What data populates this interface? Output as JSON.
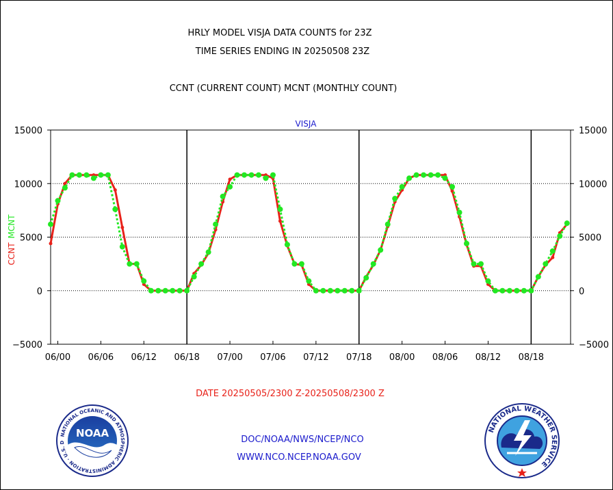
{
  "header": {
    "title_line1": "HRLY MODEL VISJA DATA COUNTS for 23Z",
    "title_line2": "TIME SERIES ENDING IN 20250508 23Z",
    "subtitle": "CCNT (CURRENT COUNT) MCNT (MONTHLY COUNT)"
  },
  "footer": {
    "date_range": "DATE 20250505/2300 Z-20250508/2300 Z",
    "org_line": "DOC/NOAA/NWS/NCEP/NCO",
    "url_line": "WWW.NCO.NCEP.NOAA.GOV"
  },
  "logos": {
    "noaa_text": "NOAA",
    "noaa_ring_text": "NATIONAL OCEANIC AND ATMOSPHERIC ADMINISTRATION · U.S. DEPARTMENT OF COMMERCE ·",
    "nws_ring_text": "NATIONAL WEATHER SERVICE"
  },
  "colors": {
    "ccnt": "#e8221a",
    "mcnt": "#22e822",
    "station_label": "#1a1acc",
    "footer_text": "#1a1acc",
    "date_text": "#e8221a"
  },
  "chart_data": {
    "type": "line",
    "title": "VISJA",
    "ylabel_ccnt": "CCNT",
    "ylabel_mcnt": "MCNT",
    "ylim": [
      -5000,
      15000
    ],
    "yticks": [
      15000,
      10000,
      5000,
      0,
      -5000
    ],
    "ytick_labels": [
      "15000",
      "10000",
      "5000",
      "0",
      "−5000"
    ],
    "xlim": [
      -1,
      71.5
    ],
    "xticks": [
      0,
      6,
      12,
      18,
      24,
      30,
      36,
      42,
      48,
      54,
      60,
      66
    ],
    "xtick_labels": [
      "06/00",
      "06/06",
      "06/12",
      "06/18",
      "07/00",
      "07/06",
      "07/12",
      "07/18",
      "08/00",
      "08/06",
      "08/12",
      "08/18"
    ],
    "day_boundaries": [
      18,
      42,
      66
    ],
    "grid": "horizontal dotted",
    "series": [
      {
        "name": "CCNT",
        "style": "line",
        "x": [
          -1,
          0,
          1,
          2,
          3,
          4,
          5,
          6,
          7,
          8,
          9,
          10,
          11,
          12,
          13,
          14,
          15,
          16,
          17,
          18,
          19,
          20,
          21,
          22,
          23,
          24,
          25,
          26,
          27,
          28,
          29,
          30,
          31,
          32,
          33,
          34,
          35,
          36,
          37,
          38,
          39,
          40,
          41,
          42,
          43,
          44,
          45,
          46,
          47,
          48,
          49,
          50,
          51,
          52,
          53,
          54,
          55,
          56,
          57,
          58,
          59,
          60,
          61,
          62,
          63,
          64,
          65,
          66,
          67,
          68,
          69,
          70,
          71
        ],
        "values": [
          4400,
          8100,
          10000,
          10800,
          10800,
          10800,
          10800,
          10800,
          10800,
          9400,
          5900,
          2500,
          2500,
          600,
          0,
          0,
          0,
          0,
          0,
          0,
          1600,
          2400,
          3500,
          5700,
          8300,
          10400,
          10800,
          10800,
          10800,
          10800,
          10800,
          10500,
          6500,
          4200,
          2500,
          2400,
          600,
          0,
          0,
          0,
          0,
          0,
          0,
          0,
          1300,
          2400,
          3800,
          6000,
          8300,
          9400,
          10500,
          10800,
          10800,
          10800,
          10800,
          10800,
          9300,
          6900,
          4300,
          2300,
          2300,
          600,
          0,
          0,
          0,
          0,
          0,
          0,
          1300,
          2400,
          3100,
          5400,
          6200
        ]
      },
      {
        "name": "MCNT",
        "style": "dotted-markers",
        "x": [
          -1,
          0,
          1,
          2,
          3,
          4,
          5,
          6,
          7,
          8,
          9,
          10,
          11,
          12,
          13,
          14,
          15,
          16,
          17,
          18,
          19,
          20,
          21,
          22,
          23,
          24,
          25,
          26,
          27,
          28,
          29,
          30,
          31,
          32,
          33,
          34,
          35,
          36,
          37,
          38,
          39,
          40,
          41,
          42,
          43,
          44,
          45,
          46,
          47,
          48,
          49,
          50,
          51,
          52,
          53,
          54,
          55,
          56,
          57,
          58,
          59,
          60,
          61,
          62,
          63,
          64,
          65,
          66,
          67,
          68,
          69,
          70,
          71
        ],
        "values": [
          6200,
          8400,
          9600,
          10800,
          10800,
          10800,
          10500,
          10800,
          10800,
          7600,
          4100,
          2500,
          2500,
          900,
          0,
          0,
          0,
          0,
          0,
          0,
          1300,
          2500,
          3600,
          6200,
          8800,
          9700,
          10800,
          10800,
          10800,
          10800,
          10500,
          10800,
          7600,
          4300,
          2500,
          2500,
          900,
          0,
          0,
          0,
          0,
          0,
          0,
          0,
          1200,
          2500,
          3800,
          6200,
          8600,
          9700,
          10500,
          10800,
          10800,
          10800,
          10800,
          10500,
          9700,
          7300,
          4400,
          2500,
          2500,
          900,
          0,
          0,
          0,
          0,
          0,
          0,
          1300,
          2500,
          3700,
          5100,
          6300
        ]
      }
    ]
  }
}
